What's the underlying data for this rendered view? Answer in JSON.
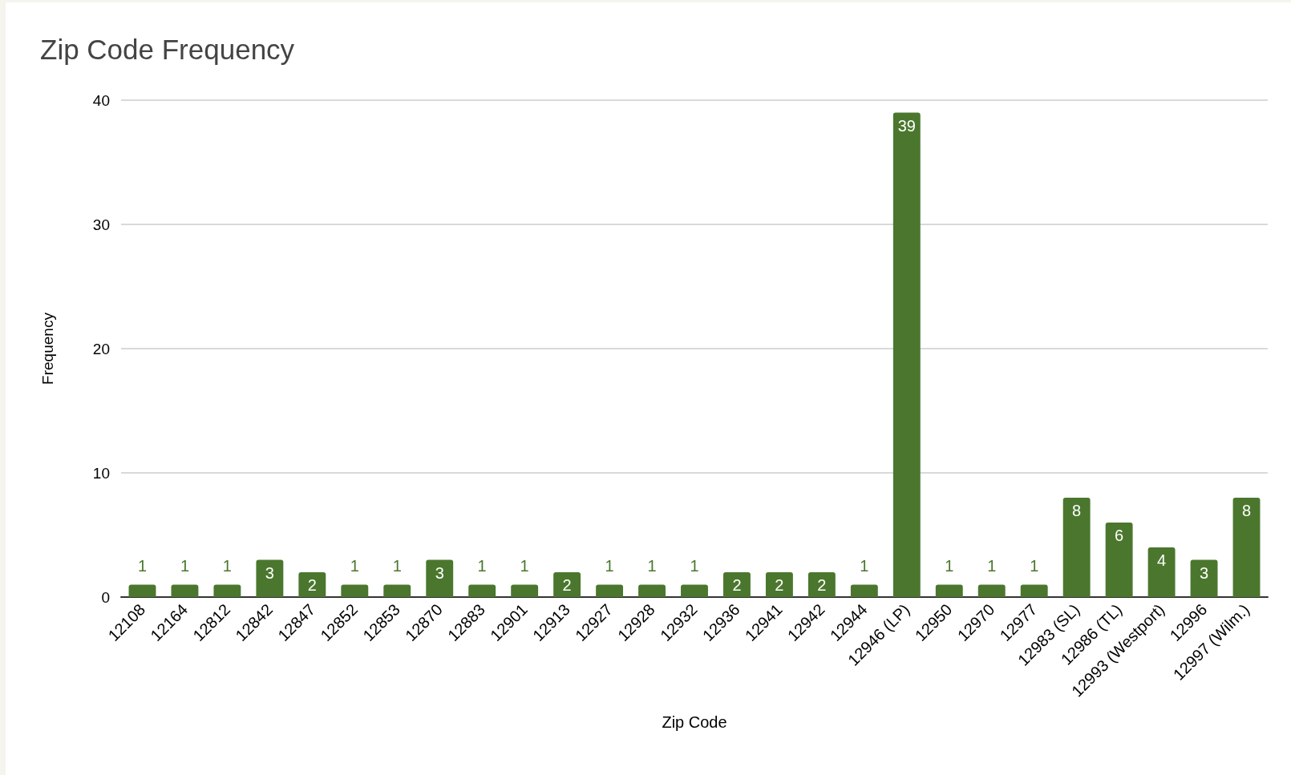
{
  "chart_data": {
    "type": "bar",
    "title": "Zip Code Frequency",
    "xlabel": "Zip Code",
    "ylabel": "Frequency",
    "categories": [
      "12108",
      "12164",
      "12812",
      "12842",
      "12847",
      "12852",
      "12853",
      "12870",
      "12883",
      "12901",
      "12913",
      "12927",
      "12928",
      "12932",
      "12936",
      "12941",
      "12942",
      "12944",
      "12946 (LP)",
      "12950",
      "12970",
      "12977",
      "12983 (SL)",
      "12986 (TL)",
      "12993 (Westport)",
      "12996",
      "12997 (Wilm.)"
    ],
    "values": [
      1,
      1,
      1,
      3,
      2,
      1,
      1,
      3,
      1,
      1,
      2,
      1,
      1,
      1,
      2,
      2,
      2,
      1,
      39,
      1,
      1,
      1,
      8,
      6,
      4,
      3,
      8
    ],
    "color": "#4a772d",
    "ylim": [
      0,
      40
    ],
    "yticks": [
      0,
      10,
      20,
      30,
      40
    ],
    "grid": "y",
    "data_labels": true
  }
}
